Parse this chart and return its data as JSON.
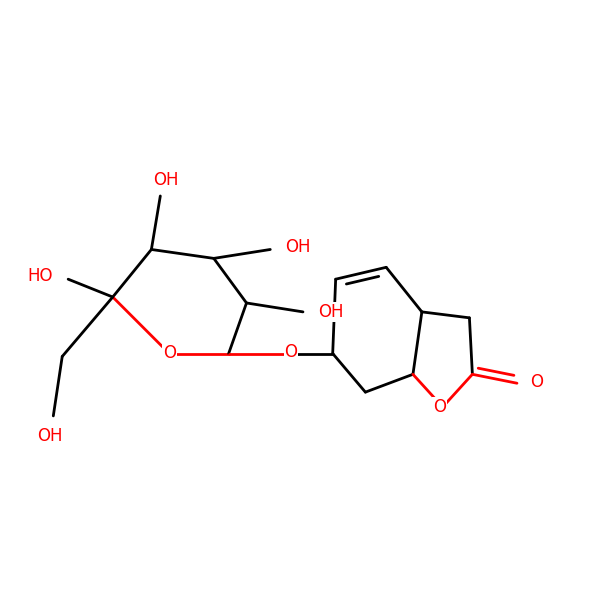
{
  "bg": "#ffffff",
  "black": "#000000",
  "red": "#ff0000",
  "lw": 2.0,
  "fs": 12,
  "fig_w": 6.0,
  "fig_h": 6.0,
  "xlim": [
    0.0,
    10.0
  ],
  "ylim": [
    0.5,
    7.5
  ]
}
